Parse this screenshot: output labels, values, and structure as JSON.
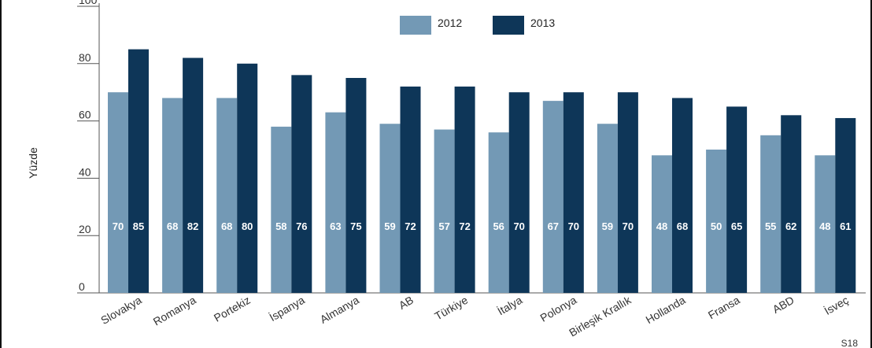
{
  "chart_data": {
    "type": "bar",
    "ylabel": "Yüzde",
    "ylim": [
      0,
      100
    ],
    "yticks": [
      0,
      20,
      40,
      60,
      80,
      100
    ],
    "grid": false,
    "legend_position": "top-center",
    "categories": [
      "Slovakya",
      "Romanya",
      "Portekiz",
      "İspanya",
      "Almanya",
      "AB",
      "Türkiye",
      "İtalya",
      "Polonya",
      "Birleşik Krallık",
      "Hollanda",
      "Fransa",
      "ABD",
      "İsveç"
    ],
    "series": [
      {
        "name": "2012",
        "color": "#7399b5",
        "values": [
          70,
          68,
          68,
          58,
          63,
          59,
          57,
          56,
          67,
          59,
          48,
          50,
          55,
          48
        ]
      },
      {
        "name": "2013",
        "color": "#0e3658",
        "values": [
          85,
          82,
          80,
          76,
          75,
          72,
          72,
          70,
          70,
          70,
          68,
          65,
          62,
          61
        ]
      }
    ]
  },
  "footer_code": "S18"
}
